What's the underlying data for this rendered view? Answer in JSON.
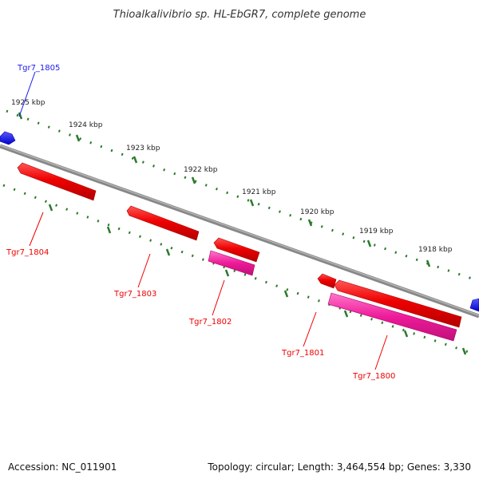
{
  "title": "Thioalkalivibrio sp. HL-EbGR7, complete genome",
  "footer": {
    "accession": "Accession: NC_011901",
    "summary": "Topology: circular; Length: 3,464,554 bp; Genes: 3,330"
  },
  "scale_labels": [
    "1925 kbp",
    "1924 kbp",
    "1923 kbp",
    "1922 kbp",
    "1921 kbp",
    "1920 kbp",
    "1919 kbp",
    "1918 kbp"
  ],
  "genes": [
    {
      "label": "Tgr7_1805",
      "strand": "forward",
      "color": "#1a1aee"
    },
    {
      "label": "Tgr7_1804",
      "strand": "reverse",
      "color": "#ee0000"
    },
    {
      "label": "Tgr7_1803",
      "strand": "reverse",
      "color": "#ee0000"
    },
    {
      "label": "Tgr7_1802",
      "strand": "reverse",
      "color": "#ee0000"
    },
    {
      "label": "Tgr7_1801",
      "strand": "reverse",
      "color": "#ee0000"
    },
    {
      "label": "Tgr7_1800",
      "strand": "reverse",
      "color": "#ee0000"
    }
  ],
  "colors": {
    "backbone": "#888888",
    "forward_gene": "#1a1aee",
    "reverse_gene": "#ee0000",
    "cds_feature": "#ee1a9a",
    "tick": "#2a7a2a"
  }
}
